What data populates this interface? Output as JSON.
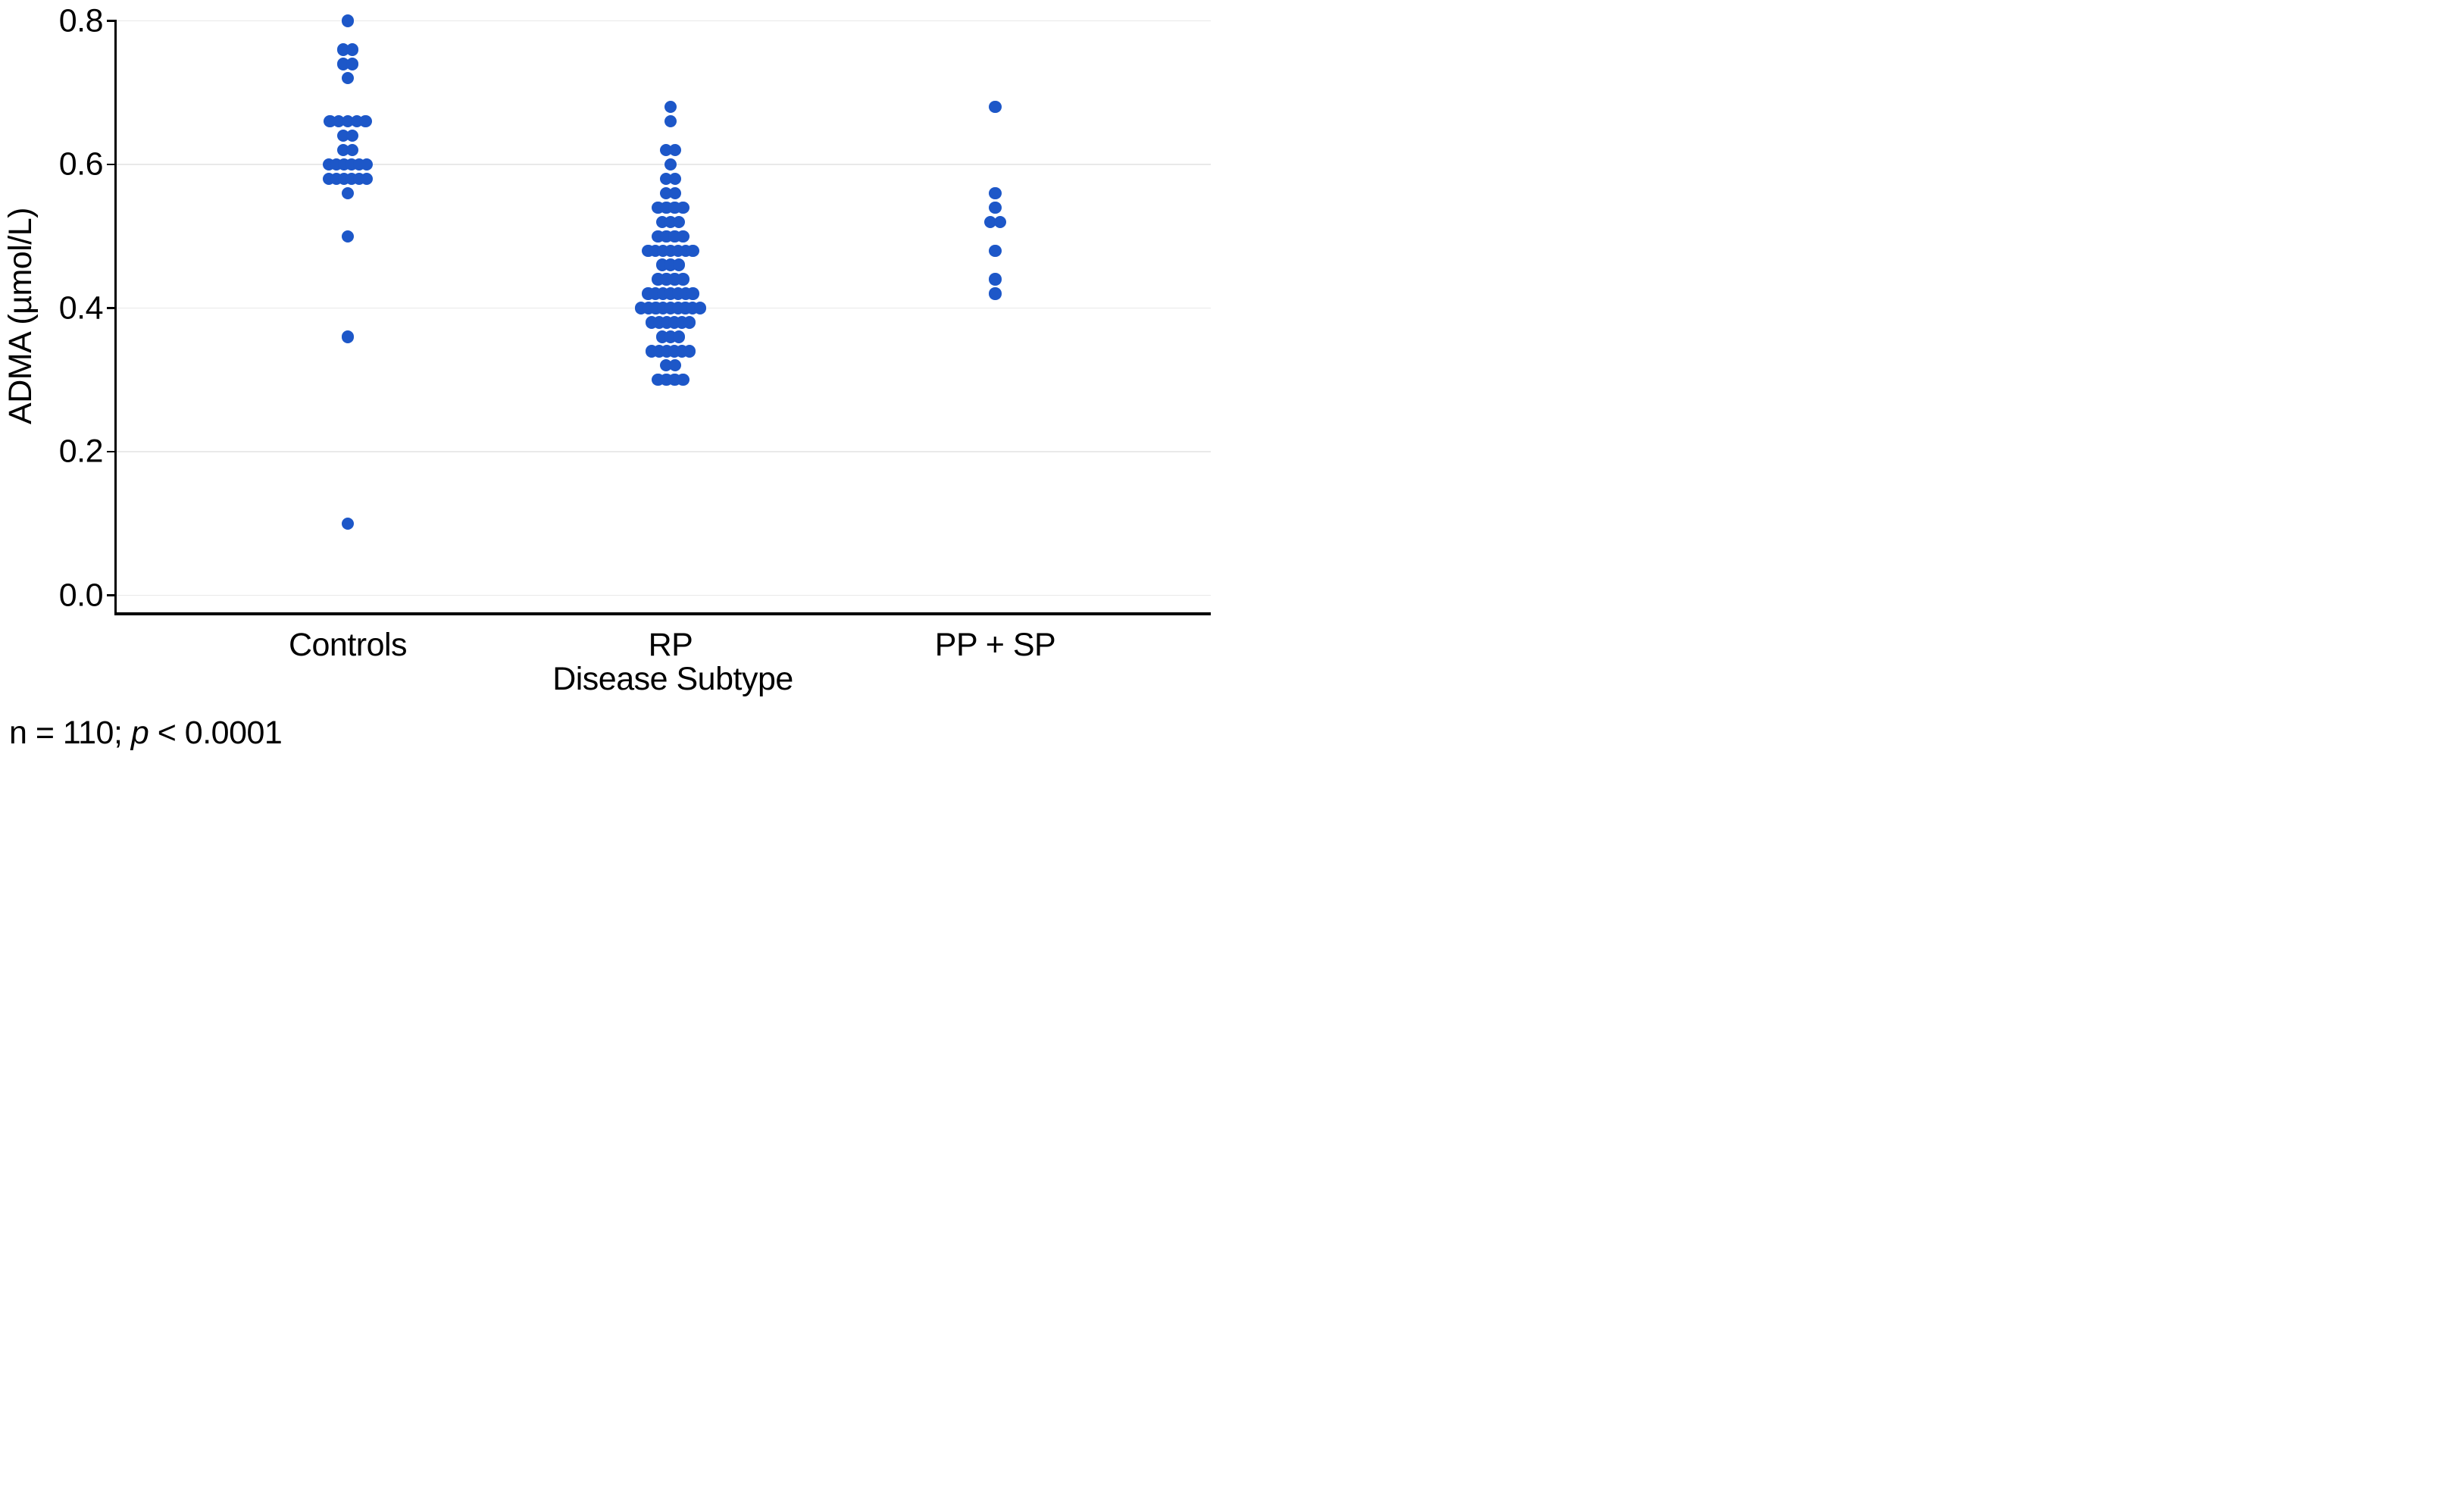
{
  "figure": {
    "footnote": {
      "prefix": "n = 110; ",
      "p_symbol": "p",
      "suffix": " < 0.0001"
    }
  },
  "chart_data": {
    "type": "scatter",
    "subtype": "dot-strip-plot",
    "title": "",
    "xlabel": "Disease Subtype",
    "ylabel": "ADMA (µmol/L)",
    "ylim": [
      0.0,
      0.8
    ],
    "yticks": [
      0.0,
      0.2,
      0.4,
      0.6,
      0.8
    ],
    "ytick_labels": [
      "0.0",
      "0.2",
      "0.4",
      "0.6",
      "0.8"
    ],
    "grid": "horizontal",
    "gridline_color": "#e9e9e9",
    "legend_position": "none",
    "point_color": "#1d57c8",
    "annotation": "n = 110; p < 0.0001",
    "n_total": 110,
    "categories": [
      "Controls",
      "RP",
      "PP + SP"
    ],
    "series": [
      {
        "name": "Controls",
        "values": [
          0.8,
          0.76,
          0.76,
          0.74,
          0.74,
          0.72,
          0.66,
          0.66,
          0.66,
          0.66,
          0.66,
          0.64,
          0.64,
          0.62,
          0.62,
          0.6,
          0.6,
          0.6,
          0.6,
          0.6,
          0.6,
          0.58,
          0.58,
          0.58,
          0.58,
          0.58,
          0.58,
          0.56,
          0.5,
          0.36,
          0.1
        ]
      },
      {
        "name": "RP",
        "values": [
          0.68,
          0.66,
          0.62,
          0.62,
          0.6,
          0.58,
          0.58,
          0.56,
          0.56,
          0.54,
          0.54,
          0.54,
          0.54,
          0.52,
          0.52,
          0.52,
          0.5,
          0.5,
          0.5,
          0.5,
          0.48,
          0.48,
          0.48,
          0.48,
          0.48,
          0.48,
          0.48,
          0.46,
          0.46,
          0.46,
          0.44,
          0.44,
          0.44,
          0.44,
          0.42,
          0.42,
          0.42,
          0.42,
          0.42,
          0.42,
          0.42,
          0.4,
          0.4,
          0.4,
          0.4,
          0.4,
          0.4,
          0.4,
          0.4,
          0.4,
          0.38,
          0.38,
          0.38,
          0.38,
          0.38,
          0.38,
          0.36,
          0.36,
          0.36,
          0.34,
          0.34,
          0.34,
          0.34,
          0.34,
          0.34,
          0.32,
          0.32,
          0.3,
          0.3,
          0.3,
          0.3
        ]
      },
      {
        "name": "PP + SP",
        "values": [
          0.68,
          0.56,
          0.54,
          0.52,
          0.52,
          0.48,
          0.44,
          0.42
        ]
      }
    ]
  }
}
